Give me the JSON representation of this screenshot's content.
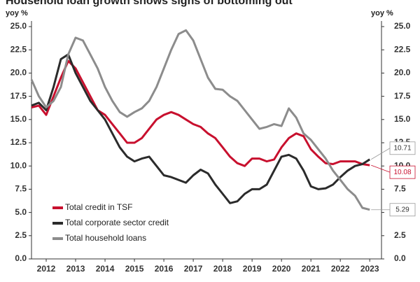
{
  "chart_data": {
    "type": "line",
    "title": "Household loan growth shows signs of bottoming out",
    "y_label": "yoy %",
    "y2_label": "yoy %",
    "x": [
      2011.5,
      2011.75,
      2012,
      2012.25,
      2012.5,
      2012.75,
      2013,
      2013.25,
      2013.5,
      2013.75,
      2014,
      2014.25,
      2014.5,
      2014.75,
      2015,
      2015.25,
      2015.5,
      2015.75,
      2016,
      2016.25,
      2016.5,
      2016.75,
      2017,
      2017.25,
      2017.5,
      2017.75,
      2018,
      2018.25,
      2018.5,
      2018.75,
      2019,
      2019.25,
      2019.5,
      2019.75,
      2020,
      2020.25,
      2020.5,
      2020.75,
      2021,
      2021.25,
      2021.5,
      2021.75,
      2022,
      2022.25,
      2022.5,
      2022.75,
      2023
    ],
    "series": [
      {
        "name": "Total credit in TSF",
        "color": "#c8102e",
        "end_label": "10.08",
        "values": [
          16.3,
          16.5,
          15.5,
          17.5,
          19.5,
          21.3,
          20.5,
          19.0,
          17.5,
          16.0,
          15.5,
          14.5,
          13.5,
          12.5,
          12.5,
          13.0,
          14.0,
          15.0,
          15.5,
          15.8,
          15.5,
          15.0,
          14.5,
          14.2,
          13.5,
          13.0,
          12.0,
          11.0,
          10.3,
          10.0,
          10.8,
          10.8,
          10.5,
          10.7,
          12.0,
          13.0,
          13.5,
          13.2,
          11.8,
          11.0,
          10.3,
          10.2,
          10.5,
          10.5,
          10.5,
          10.2,
          10.08
        ]
      },
      {
        "name": "Total corporate sector credit",
        "color": "#2b2b2b",
        "end_label": "10.71",
        "values": [
          16.5,
          16.8,
          16.0,
          18.5,
          21.5,
          22.0,
          20.0,
          18.5,
          17.0,
          16.0,
          15.0,
          13.5,
          12.0,
          11.0,
          10.5,
          10.8,
          11.0,
          10.0,
          9.0,
          8.8,
          8.5,
          8.2,
          9.0,
          9.6,
          9.2,
          8.0,
          7.0,
          6.0,
          6.2,
          7.0,
          7.5,
          7.5,
          8.0,
          9.5,
          11.0,
          11.2,
          10.8,
          9.5,
          7.8,
          7.5,
          7.6,
          8.0,
          8.8,
          9.5,
          10.0,
          10.2,
          10.71
        ]
      },
      {
        "name": "Total household loans",
        "color": "#8c8c8c",
        "end_label": "5.29",
        "values": [
          19.3,
          17.5,
          16.3,
          17.0,
          18.5,
          22.0,
          23.8,
          23.5,
          22.0,
          20.5,
          18.5,
          17.0,
          15.8,
          15.3,
          15.8,
          16.2,
          17.0,
          18.5,
          20.5,
          22.5,
          24.2,
          24.6,
          23.5,
          21.5,
          19.5,
          18.3,
          18.2,
          17.5,
          17.0,
          16.0,
          15.0,
          14.0,
          14.2,
          14.5,
          14.3,
          16.2,
          15.2,
          13.5,
          12.8,
          11.8,
          10.8,
          9.5,
          8.5,
          7.5,
          6.8,
          5.5,
          5.29
        ]
      }
    ],
    "xlim": [
      2011.5,
      2023.4
    ],
    "xticks": [
      2012,
      2013,
      2014,
      2015,
      2016,
      2017,
      2018,
      2019,
      2020,
      2021,
      2022,
      2023
    ],
    "ylim": [
      0,
      25
    ],
    "yticks": [
      {
        "value": 0,
        "label": "0.0"
      },
      2.5,
      {
        "value": 5,
        "label": "5.0"
      },
      7.5,
      {
        "value": 10,
        "label": "10.0"
      },
      12.5,
      {
        "value": 15,
        "label": "15.0"
      },
      17.5,
      {
        "value": 20,
        "label": "20.0"
      },
      22.5,
      {
        "value": 25,
        "label": "25.0"
      }
    ],
    "y2lim": [
      0,
      25
    ],
    "y2ticks": [
      {
        "value": 0,
        "label": "0.0"
      },
      2.5,
      {
        "value": 5,
        "label": "5.0"
      },
      7.5,
      {
        "value": 10,
        "label": "10.0"
      },
      12.5,
      {
        "value": 15,
        "label": "15.0"
      },
      17.5,
      {
        "value": 20,
        "label": "20.0"
      },
      22.5,
      {
        "value": 25,
        "label": "25.0"
      }
    ],
    "grid": false,
    "legend": "lower left"
  }
}
